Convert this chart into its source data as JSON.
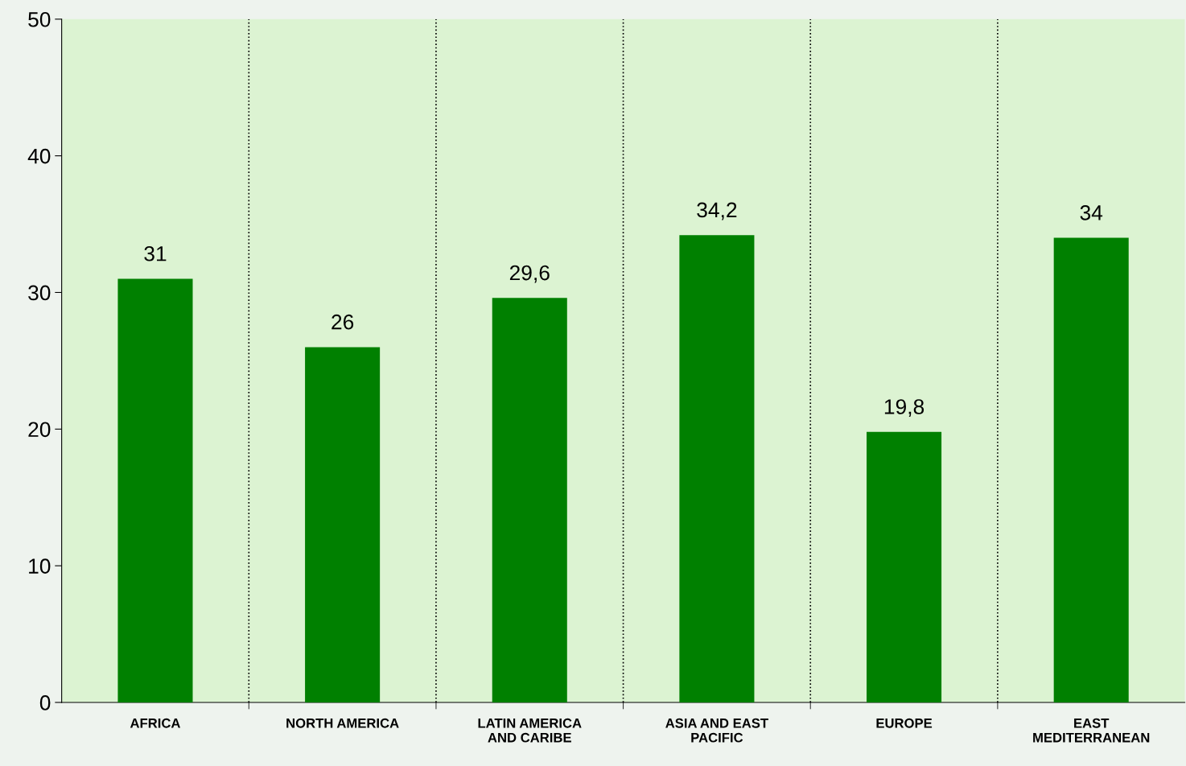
{
  "chart_data": {
    "type": "bar",
    "categories": [
      "AFRICA",
      "NORTH AMERICA",
      "LATIN AMERICA\nAND CARIBE",
      "ASIA AND EAST\nPACIFIC",
      "EUROPE",
      "EAST\nMEDITERRANEAN"
    ],
    "values": [
      31,
      26,
      29.6,
      34.2,
      19.8,
      34
    ],
    "value_labels": [
      "31",
      "26",
      "29,6",
      "34,2",
      "19,8",
      "34"
    ],
    "color": "#008000",
    "ylim": [
      0,
      50
    ],
    "yticks": [
      0,
      10,
      20,
      30,
      40,
      50
    ],
    "grid": "x",
    "legend": false
  }
}
